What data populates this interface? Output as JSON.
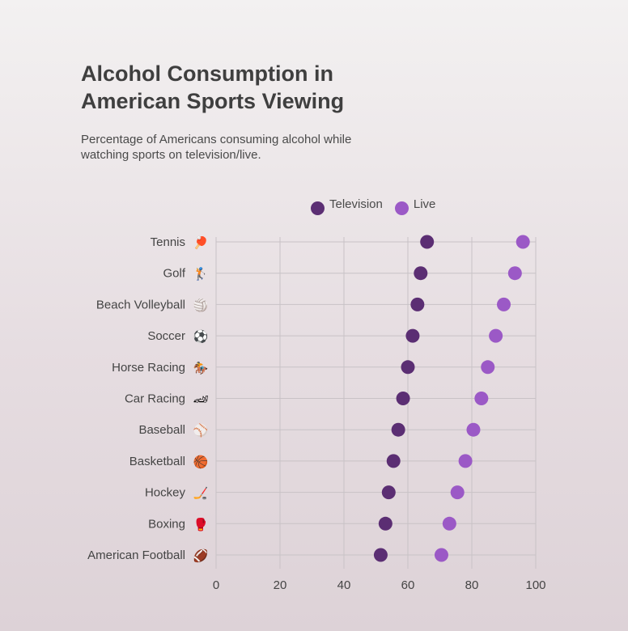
{
  "title": "Alcohol Consumption in American Sports Viewing",
  "subtitle": "Percentage of Americans consuming alcohol while watching sports on television/live.",
  "legend": {
    "television": "Television",
    "live": "Live"
  },
  "colors": {
    "television": "#5b2e73",
    "live": "#9b59c6",
    "grid": "#c8c2c6"
  },
  "chart_data": {
    "type": "scatter",
    "title": "Alcohol Consumption in American Sports Viewing",
    "subtitle": "Percentage of Americans consuming alcohol while watching sports on television/live.",
    "categories": [
      "Tennis",
      "Golf",
      "Beach Volleyball",
      "Soccer",
      "Horse Racing",
      "Car Racing",
      "Baseball",
      "Basketball",
      "Hockey",
      "Boxing",
      "American Football"
    ],
    "icons": [
      "🏓",
      "🏌",
      "🏐",
      "⚽",
      "🏇",
      "🏎",
      "⚾",
      "🏀",
      "🏒",
      "🥊",
      "🏈"
    ],
    "series": [
      {
        "name": "Television",
        "values": [
          66,
          64,
          63,
          61.5,
          60,
          58.5,
          57,
          55.5,
          54,
          53,
          51.5
        ]
      },
      {
        "name": "Live",
        "values": [
          96,
          93.5,
          90,
          87.5,
          85,
          83,
          80.5,
          78,
          75.5,
          73,
          70.5
        ]
      }
    ],
    "xlim": [
      0,
      100
    ],
    "xticks": [
      "0",
      "20",
      "40",
      "60",
      "80",
      "100"
    ],
    "xtick_values": [
      0,
      20,
      40,
      60,
      80,
      100
    ],
    "grid": true,
    "legend_position": "top-center"
  }
}
